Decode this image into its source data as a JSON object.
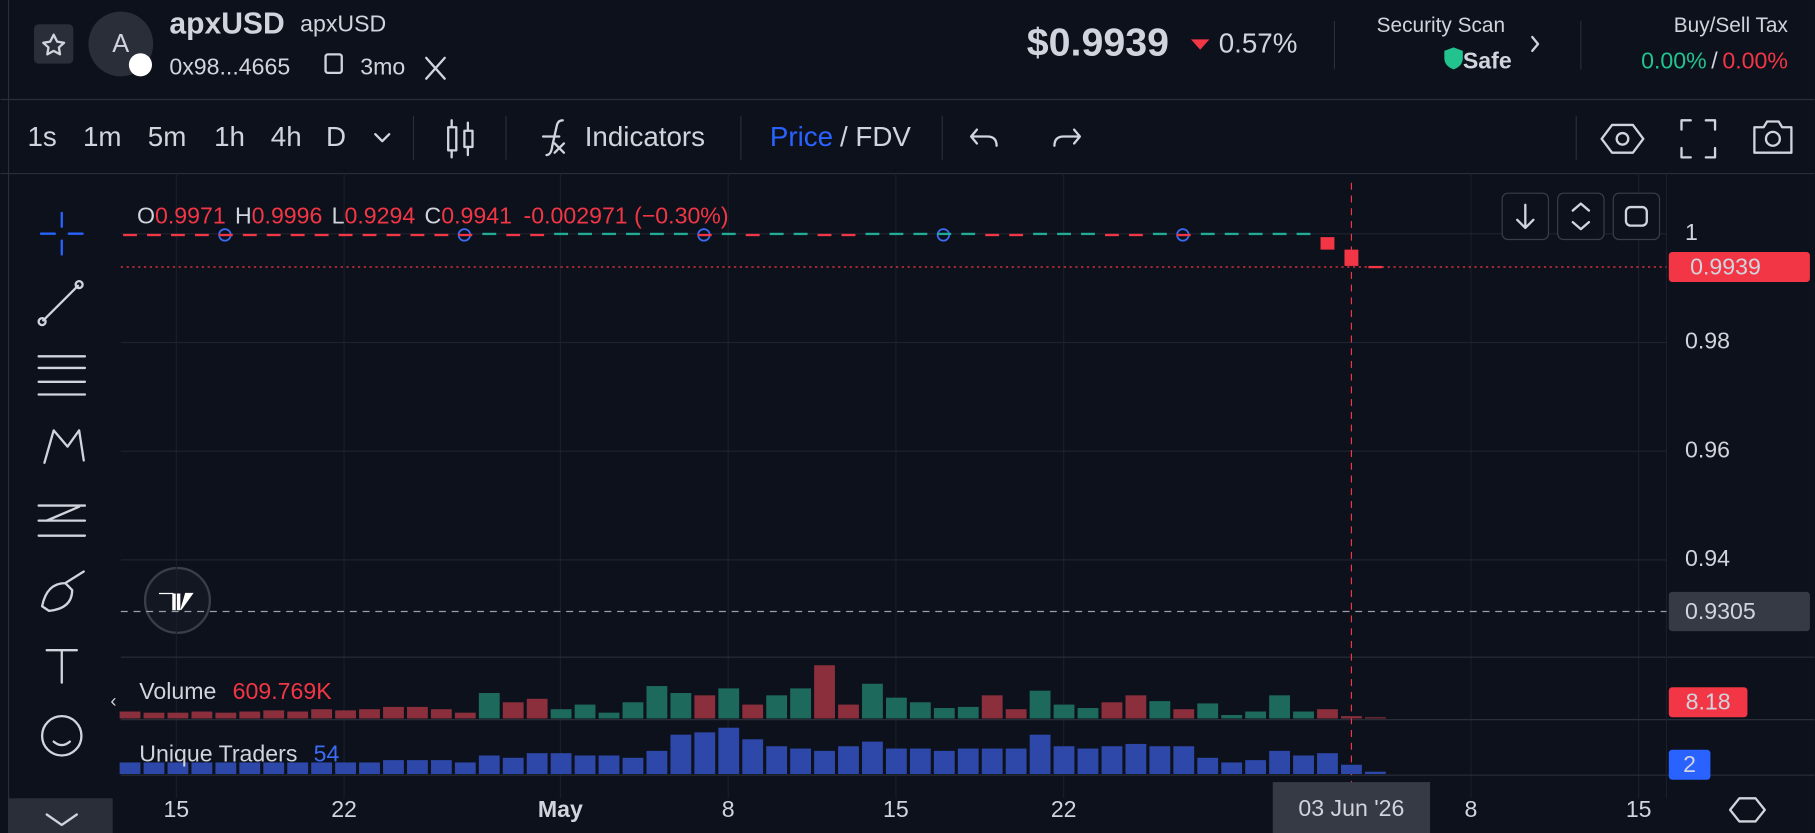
{
  "header": {
    "avatar": "A",
    "name": "apxUSD",
    "symbol": "apxUSD",
    "address": "0x98...4665",
    "age": "3mo",
    "price": "$0.9939",
    "change": "0.57%",
    "security_label": "Security Scan",
    "security_status": "Safe",
    "tax_label": "Buy/Sell Tax",
    "buy_tax": "0.00%",
    "separator": "/",
    "sell_tax": "0.00%"
  },
  "toolbar": {
    "intervals": [
      "1s",
      "1m",
      "5m",
      "1h",
      "4h",
      "D"
    ],
    "indicators": "Indicators",
    "price": "Price",
    "fdv": "/ FDV"
  },
  "legend": {
    "o_label": "O",
    "o": "0.9971",
    "h_label": "H",
    "h": "0.9996",
    "l_label": "L",
    "l": "0.9294",
    "c_label": "C",
    "c": "0.9941",
    "change": "-0.002971 (−0.30%)"
  },
  "chart": {
    "ylim": [
      0.9221,
      1.0111
    ],
    "yticks": [
      1,
      0.98,
      0.96,
      0.94
    ],
    "last_price": 0.9939,
    "crosshair_price": 0.9305,
    "crosshair_date": "03 Jun '26",
    "xticks": [
      "15",
      "22",
      "May",
      "8",
      "15",
      "22",
      "8",
      "15"
    ],
    "up_color": "#22ab94",
    "down_color": "#f23645",
    "open": [
      1,
      1,
      1,
      1,
      1,
      1,
      1,
      1,
      1,
      1,
      1,
      1,
      1,
      1,
      1,
      1,
      1,
      1,
      1,
      1,
      1,
      1,
      1,
      1,
      1,
      1,
      1,
      1,
      1,
      1,
      1,
      1,
      1,
      1,
      1,
      1,
      1,
      1,
      1,
      1,
      1,
      1,
      1,
      1,
      1,
      1,
      1,
      1,
      1,
      1,
      0.9994,
      0.9971,
      0.9941
    ],
    "close": [
      0.9998,
      0.9998,
      0.9998,
      0.9998,
      0.9998,
      0.9998,
      0.9998,
      0.9998,
      0.9998,
      0.9998,
      0.9998,
      0.9998,
      0.9998,
      0.9998,
      0.9998,
      1.0002,
      0.9998,
      0.9998,
      1.0002,
      1.0002,
      1.0002,
      1.0002,
      1.0002,
      1.0002,
      0.9998,
      1.0002,
      0.9998,
      1.0002,
      1.0002,
      0.9998,
      0.9998,
      1.0002,
      1.0002,
      1.0002,
      1.0002,
      1.0002,
      0.9998,
      0.9998,
      1.0002,
      1.0002,
      1.0002,
      0.9998,
      0.9998,
      1.0002,
      0.9998,
      1.0002,
      1.0002,
      1.0002,
      1.0002,
      1.0002,
      0.9971,
      0.9941,
      0.9939
    ]
  },
  "volume": {
    "label": "Volume",
    "value_label": "609.769K",
    "last": "8.18",
    "values": [
      6,
      5,
      5,
      6,
      5,
      6,
      7,
      6,
      8,
      7,
      8,
      10,
      10,
      8,
      5,
      22,
      14,
      17,
      8,
      12,
      5,
      14,
      28,
      22,
      20,
      26,
      12,
      20,
      26,
      46,
      12,
      30,
      18,
      14,
      9,
      10,
      20,
      8,
      24,
      12,
      9,
      14,
      20,
      15,
      8,
      13,
      3,
      6,
      20,
      6,
      8,
      2,
      1
    ]
  },
  "traders": {
    "label": "Unique Traders",
    "value": 54,
    "last": 2,
    "values": [
      10,
      10,
      10,
      10,
      10,
      10,
      10,
      10,
      10,
      10,
      10,
      12,
      12,
      12,
      10,
      16,
      14,
      18,
      18,
      16,
      16,
      14,
      20,
      34,
      36,
      40,
      30,
      24,
      22,
      20,
      24,
      28,
      22,
      22,
      20,
      22,
      22,
      22,
      34,
      24,
      22,
      24,
      26,
      24,
      24,
      14,
      10,
      12,
      20,
      16,
      18,
      8,
      2
    ]
  }
}
